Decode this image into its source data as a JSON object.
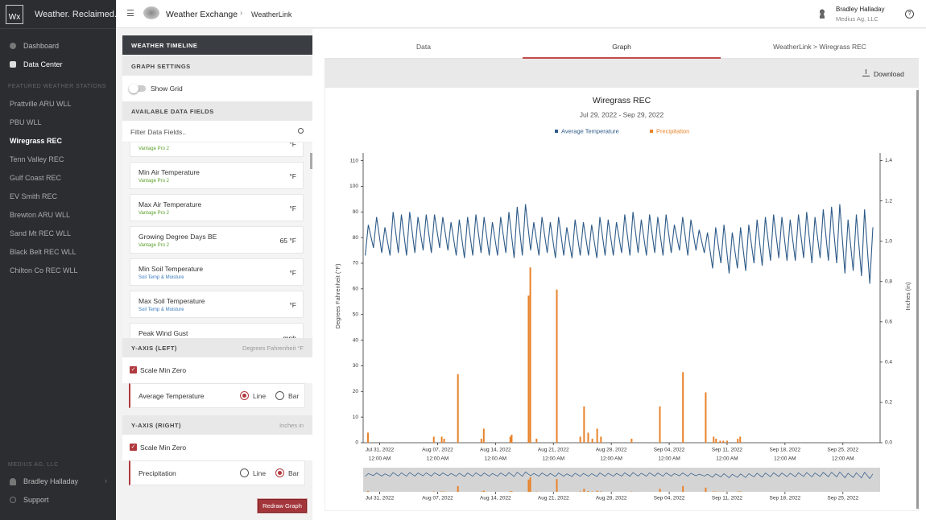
{
  "sidebar": {
    "logo": "Wx",
    "brand": "Weather. Reclaimed.",
    "nav": [
      "Dashboard",
      "Data Center"
    ],
    "stations_heading": "FEATURED WEATHER STATIONS",
    "stations": [
      "Prattville ARU WLL",
      "PBU WLL",
      "Wiregrass REC",
      "Tenn Valley REC",
      "Gulf Coast REC",
      "EV Smith REC",
      "Brewton ARU WLL",
      "Sand Mt REC WLL",
      "Black Belt REC WLL",
      "Chilton Co REC WLL"
    ],
    "active_station": 2,
    "org_heading": "MEDIUS AG, LLC",
    "user": "Bradley Halladay",
    "support": "Support"
  },
  "topbar": {
    "app": "Weather Exchange",
    "page": "WeatherLink",
    "user_name": "Bradley Halladay",
    "user_org": "Medius Ag, LLC"
  },
  "settings": {
    "heading": "WEATHER TIMELINE",
    "graph_settings": "GRAPH SETTINGS",
    "show_grid": "Show Grid",
    "fields_heading": "AVAILABLE DATA FIELDS",
    "filter_placeholder": "Filter Data Fields..",
    "fields": [
      {
        "source": "Vantage Pro 2",
        "color": "#5aa02c",
        "unit": "°F"
      },
      {
        "name": "Min Air Temperature",
        "source": "Vantage Pro 2",
        "color": "#5aa02c",
        "unit": "°F"
      },
      {
        "name": "Max Air Temperature",
        "source": "Vantage Pro 2",
        "color": "#5aa02c",
        "unit": "°F"
      },
      {
        "name": "Growing Degree Days BE",
        "source": "Vantage Pro 2",
        "color": "#5aa02c",
        "unit": "65 °F"
      },
      {
        "name": "Min Soil Temperature",
        "source": "Soil Temp & Moisture",
        "color": "#3a7cc0",
        "unit": "°F"
      },
      {
        "name": "Max Soil Temperature",
        "source": "Soil Temp & Moisture",
        "color": "#3a7cc0",
        "unit": "°F"
      },
      {
        "name": "Peak Wind Gust",
        "unit": "mph"
      }
    ],
    "axes": [
      {
        "heading": "Y-AXIS (LEFT)",
        "unit": "Degrees Fahrenheit °F",
        "scale_min_zero": "Scale Min Zero",
        "field": "Average Temperature",
        "options": [
          "Line",
          "Bar"
        ],
        "selected": 0
      },
      {
        "heading": "Y-AXIS (RIGHT)",
        "unit": "Inches in",
        "scale_min_zero": "Scale Min Zero",
        "field": "Precipitation",
        "options": [
          "Line",
          "Bar"
        ],
        "selected": 1
      }
    ],
    "redraw": "Redraw Graph"
  },
  "tabs": {
    "items": [
      "Data",
      "Graph",
      "WeatherLink > Wiregrass REC"
    ],
    "active": 1,
    "download": "Download"
  },
  "chart_data": {
    "type": "line",
    "title": "Wiregrass REC",
    "subtitle": "Jul 29, 2022 - Sep 29, 2022",
    "ylabel": "Degrees Fahrenheit (°F)",
    "y2label": "Inches (in)",
    "grid": false,
    "xlim": [
      "2022-07-29 00:00",
      "2022-09-29 12:00"
    ],
    "xticks": [
      {
        "value": "2022-07-31 00:00",
        "label": "Jul 31, 2022",
        "time": "12:00 AM"
      },
      {
        "value": "2022-08-07 00:00",
        "label": "Aug 07, 2022",
        "time": "12:00 AM"
      },
      {
        "value": "2022-08-14 00:00",
        "label": "Aug 14, 2022",
        "time": "12:00 AM"
      },
      {
        "value": "2022-08-21 00:00",
        "label": "Aug 21, 2022",
        "time": "12:00 AM"
      },
      {
        "value": "2022-08-28 00:00",
        "label": "Aug 28, 2022",
        "time": "12:00 AM"
      },
      {
        "value": "2022-09-04 00:00",
        "label": "Sep 04, 2022",
        "time": "12:00 AM"
      },
      {
        "value": "2022-09-11 00:00",
        "label": "Sep 11, 2022",
        "time": "12:00 AM"
      },
      {
        "value": "2022-09-18 00:00",
        "label": "Sep 18, 2022",
        "time": "12:00 AM"
      },
      {
        "value": "2022-09-25 00:00",
        "label": "Sep 25, 2022",
        "time": "12:00 AM"
      }
    ],
    "ylim": [
      0,
      113
    ],
    "yticks": [
      0,
      10,
      20,
      30,
      40,
      50,
      60,
      70,
      80,
      90,
      100,
      110
    ],
    "y2lim": [
      0,
      1.438
    ],
    "y2ticks": [
      {
        "value": 0,
        "label": "0.0"
      },
      0.2,
      0.4,
      0.6,
      0.8,
      {
        "value": 1,
        "label": "1.0"
      },
      1.2,
      1.4
    ],
    "series": [
      {
        "name": "Average Temperature",
        "color": "#2d5a88",
        "type": "line",
        "x": [
          "2022-07-29 06:00",
          "2022-07-29 15:00",
          "2022-07-30 06:00",
          "2022-07-30 15:00",
          "2022-07-31 06:00",
          "2022-07-31 15:00",
          "2022-08-01 06:00",
          "2022-08-01 15:00",
          "2022-08-02 06:00",
          "2022-08-02 15:00",
          "2022-08-03 06:00",
          "2022-08-03 15:00",
          "2022-08-04 06:00",
          "2022-08-04 15:00",
          "2022-08-05 06:00",
          "2022-08-05 15:00",
          "2022-08-06 06:00",
          "2022-08-06 15:00",
          "2022-08-07 06:00",
          "2022-08-07 15:00",
          "2022-08-08 06:00",
          "2022-08-08 15:00",
          "2022-08-09 06:00",
          "2022-08-09 15:00",
          "2022-08-10 06:00",
          "2022-08-10 15:00",
          "2022-08-11 06:00",
          "2022-08-11 15:00",
          "2022-08-12 06:00",
          "2022-08-12 15:00",
          "2022-08-13 06:00",
          "2022-08-13 15:00",
          "2022-08-14 06:00",
          "2022-08-14 15:00",
          "2022-08-15 06:00",
          "2022-08-15 15:00",
          "2022-08-16 06:00",
          "2022-08-16 15:00",
          "2022-08-17 06:00",
          "2022-08-17 15:00",
          "2022-08-18 06:00",
          "2022-08-18 15:00",
          "2022-08-19 06:00",
          "2022-08-19 15:00",
          "2022-08-20 06:00",
          "2022-08-20 15:00",
          "2022-08-21 06:00",
          "2022-08-21 15:00",
          "2022-08-22 06:00",
          "2022-08-22 15:00",
          "2022-08-23 06:00",
          "2022-08-23 15:00",
          "2022-08-24 06:00",
          "2022-08-24 15:00",
          "2022-08-25 06:00",
          "2022-08-25 15:00",
          "2022-08-26 06:00",
          "2022-08-26 15:00",
          "2022-08-27 06:00",
          "2022-08-27 15:00",
          "2022-08-28 06:00",
          "2022-08-28 15:00",
          "2022-08-29 06:00",
          "2022-08-29 15:00",
          "2022-08-30 06:00",
          "2022-08-30 15:00",
          "2022-08-31 06:00",
          "2022-08-31 15:00",
          "2022-09-01 06:00",
          "2022-09-01 15:00",
          "2022-09-02 06:00",
          "2022-09-02 15:00",
          "2022-09-03 06:00",
          "2022-09-03 15:00",
          "2022-09-04 06:00",
          "2022-09-04 15:00",
          "2022-09-05 06:00",
          "2022-09-05 15:00",
          "2022-09-06 06:00",
          "2022-09-06 15:00",
          "2022-09-07 06:00",
          "2022-09-07 15:00",
          "2022-09-08 06:00",
          "2022-09-08 15:00",
          "2022-09-09 06:00",
          "2022-09-09 15:00",
          "2022-09-10 06:00",
          "2022-09-10 15:00",
          "2022-09-11 06:00",
          "2022-09-11 15:00",
          "2022-09-12 06:00",
          "2022-09-12 15:00",
          "2022-09-13 06:00",
          "2022-09-13 15:00",
          "2022-09-14 06:00",
          "2022-09-14 15:00",
          "2022-09-15 06:00",
          "2022-09-15 15:00",
          "2022-09-16 06:00",
          "2022-09-16 15:00",
          "2022-09-17 06:00",
          "2022-09-17 15:00",
          "2022-09-18 06:00",
          "2022-09-18 15:00",
          "2022-09-19 06:00",
          "2022-09-19 15:00",
          "2022-09-20 06:00",
          "2022-09-20 15:00",
          "2022-09-21 06:00",
          "2022-09-21 15:00",
          "2022-09-22 06:00",
          "2022-09-22 15:00",
          "2022-09-23 06:00",
          "2022-09-23 15:00",
          "2022-09-24 06:00",
          "2022-09-24 15:00",
          "2022-09-25 06:00",
          "2022-09-25 15:00",
          "2022-09-26 06:00",
          "2022-09-26 15:00",
          "2022-09-27 06:00",
          "2022-09-27 15:00",
          "2022-09-28 06:00",
          "2022-09-28 15:00"
        ],
        "values": [
          73,
          85,
          76,
          88,
          74,
          84,
          73,
          90,
          74,
          89,
          73,
          90,
          74,
          88,
          75,
          89,
          74,
          89,
          76,
          88,
          75,
          86,
          73,
          87,
          72,
          88,
          73,
          89,
          74,
          88,
          73,
          86,
          73,
          88,
          74,
          90,
          72,
          92,
          73,
          93,
          75,
          86,
          73,
          88,
          74,
          86,
          72,
          88,
          73,
          84,
          72,
          87,
          73,
          86,
          73,
          85,
          72,
          88,
          73,
          87,
          73,
          86,
          74,
          89,
          73,
          90,
          74,
          87,
          73,
          89,
          74,
          88,
          73,
          89,
          74,
          85,
          75,
          88,
          73,
          87,
          75,
          83,
          74,
          82,
          68,
          84,
          70,
          85,
          66,
          82,
          68,
          84,
          67,
          85,
          70,
          87,
          69,
          88,
          71,
          89,
          72,
          88,
          71,
          87,
          71,
          89,
          72,
          90,
          70,
          88,
          72,
          91,
          71,
          92,
          70,
          93,
          66,
          87,
          67,
          89,
          65,
          91,
          62,
          84
        ]
      },
      {
        "name": "Precipitation",
        "color": "#e8822a",
        "type": "bar",
        "axis": "y2",
        "x": [
          "2022-07-29 14:00",
          "2022-08-06 13:00",
          "2022-08-07 12:00",
          "2022-08-07 19:00",
          "2022-08-09 11:00",
          "2022-08-12 07:00",
          "2022-08-12 14:00",
          "2022-08-15 19:00",
          "2022-08-15 23:00",
          "2022-08-18 00:00",
          "2022-08-18 05:00",
          "2022-08-18 23:00",
          "2022-08-21 10:00",
          "2022-08-24 06:00",
          "2022-08-24 17:00",
          "2022-08-25 05:00",
          "2022-08-25 17:00",
          "2022-08-26 07:00",
          "2022-08-26 18:00",
          "2022-08-30 11:00",
          "2022-09-02 21:00",
          "2022-09-05 16:00",
          "2022-09-08 10:00",
          "2022-09-09 09:00",
          "2022-09-09 16:00",
          "2022-09-10 04:00",
          "2022-09-10 13:00",
          "2022-09-11 00:00",
          "2022-09-12 07:00",
          "2022-09-12 14:00"
        ],
        "values": [
          0.05,
          0.03,
          0.03,
          0.02,
          0.34,
          0.02,
          0.07,
          0.03,
          0.04,
          0.73,
          0.87,
          0.02,
          0.76,
          0.03,
          0.18,
          0.05,
          0.02,
          0.07,
          0.03,
          0.02,
          0.18,
          0.35,
          0.25,
          0.03,
          0.02,
          0.01,
          0.01,
          0.01,
          0.02,
          0.03
        ]
      }
    ]
  }
}
